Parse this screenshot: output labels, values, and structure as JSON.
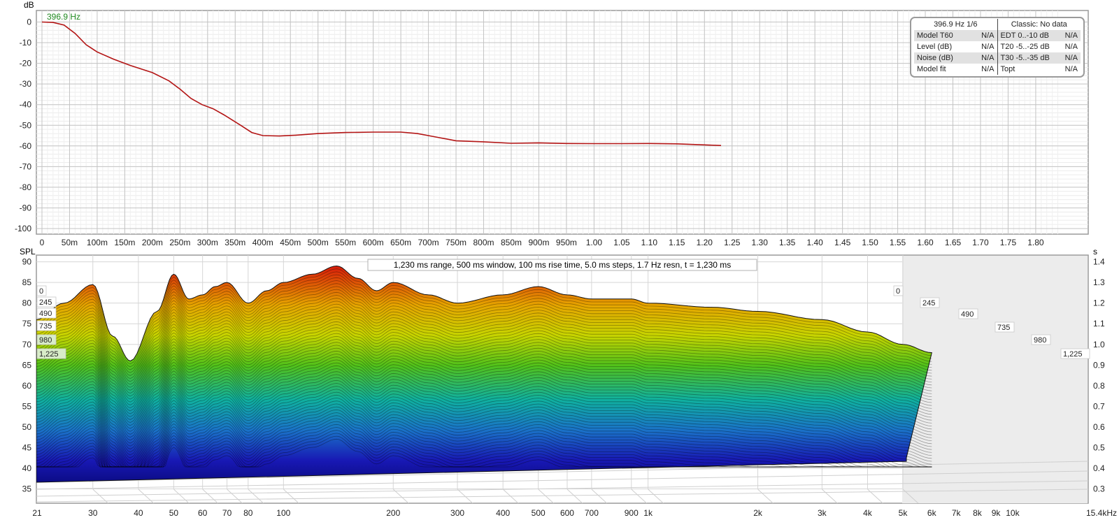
{
  "top_plot": {
    "y_unit": "dB",
    "cursor_freq": "396.9 Hz",
    "y_ticks": [
      "0",
      "-10",
      "-20",
      "-30",
      "-40",
      "-50",
      "-60",
      "-70",
      "-80",
      "-90",
      "-100"
    ],
    "x_ticks": [
      "0",
      "50m",
      "100m",
      "150m",
      "200m",
      "250m",
      "300m",
      "350m",
      "400m",
      "450m",
      "500m",
      "550m",
      "600m",
      "650m",
      "700m",
      "750m",
      "800m",
      "850m",
      "900m",
      "950m",
      "1.00",
      "1.05",
      "1.10",
      "1.15",
      "1.20",
      "1.25",
      "1.30",
      "1.35",
      "1.40",
      "1.45",
      "1.50",
      "1.55",
      "1.60",
      "1.65",
      "1.70",
      "1.75",
      "1.80"
    ]
  },
  "info_panel": {
    "header_left": "396.9 Hz 1/6",
    "header_right": "Classic: No data",
    "rows": [
      {
        "l_label": "Model T60",
        "l_value": "N/A",
        "r_label": "EDT  0..-10 dB",
        "r_value": "N/A"
      },
      {
        "l_label": "Level (dB)",
        "l_value": "N/A",
        "r_label": "T20 -5..-25 dB",
        "r_value": "N/A"
      },
      {
        "l_label": "Noise (dB)",
        "l_value": "N/A",
        "r_label": "T30 -5..-35 dB",
        "r_value": "N/A"
      },
      {
        "l_label": "Model fit",
        "l_value": "N/A",
        "r_label": "Topt",
        "r_value": "N/A"
      }
    ]
  },
  "waterfall": {
    "left_unit": "SPL",
    "right_unit": "s",
    "caption": "1,230 ms range, 500 ms window, 100 ms rise time, 5.0 ms steps,  1.7 Hz resn, t = 1,230 ms",
    "spl_ticks": [
      "90",
      "85",
      "80",
      "75",
      "70",
      "65",
      "60",
      "55",
      "50",
      "45",
      "40",
      "35"
    ],
    "time_ticks": [
      "1.4",
      "1.3",
      "1.2",
      "1.1",
      "1.0",
      "0.9",
      "0.8",
      "0.7",
      "0.6",
      "0.5",
      "0.4",
      "0.3"
    ],
    "freq_ticks": [
      "21",
      "30",
      "40",
      "50",
      "60",
      "70",
      "80",
      "100",
      "200",
      "300",
      "400",
      "500",
      "600",
      "700",
      "900",
      "1k",
      "2k",
      "3k",
      "4k",
      "5k",
      "6k",
      "7k",
      "8k",
      "9k",
      "10k",
      "15.4kHz"
    ],
    "depth_labels_left": [
      "0",
      "245",
      "490",
      "735",
      "980",
      "1,225"
    ],
    "depth_labels_right": [
      "0",
      "245",
      "490",
      "735",
      "980",
      "1,225"
    ]
  },
  "chart_data": [
    {
      "type": "line",
      "xlabel": "",
      "ylabel": "dB",
      "xlim": [
        0,
        1.85
      ],
      "ylim": [
        -100,
        0
      ],
      "grid": true,
      "series": [
        {
          "color": "#b31414",
          "x": [
            0,
            0.02,
            0.04,
            0.06,
            0.08,
            0.1,
            0.13,
            0.16,
            0.2,
            0.23,
            0.25,
            0.27,
            0.29,
            0.31,
            0.33,
            0.36,
            0.38,
            0.4,
            0.43,
            0.46,
            0.5,
            0.55,
            0.6,
            0.65,
            0.68,
            0.71,
            0.75,
            0.8,
            0.85,
            0.9,
            0.95,
            1.0,
            1.05,
            1.1,
            1.15,
            1.2,
            1.23
          ],
          "y": [
            0,
            -0.2,
            -1.5,
            -5.5,
            -11,
            -14.5,
            -18,
            -21,
            -24.5,
            -28.5,
            -32.5,
            -37,
            -40,
            -42,
            -45,
            -50,
            -53.5,
            -55,
            -55.2,
            -54.8,
            -54,
            -53.5,
            -53.3,
            -53.3,
            -54,
            -55.5,
            -57.5,
            -58,
            -58.7,
            -58.5,
            -58.8,
            -58.9,
            -58.9,
            -58.8,
            -59,
            -59.5,
            -59.8
          ]
        }
      ]
    },
    {
      "type": "area",
      "subtype": "waterfall",
      "xlabel": "",
      "ylabel": "SPL",
      "x_scale": "log",
      "xlim": [
        21,
        15400
      ],
      "ylim": [
        33,
        92
      ],
      "z_label": "s",
      "zlim": [
        0,
        1.23
      ],
      "x": [
        21,
        25,
        30,
        34,
        38,
        45,
        50,
        55,
        60,
        65,
        70,
        80,
        90,
        100,
        120,
        140,
        160,
        180,
        200,
        250,
        300,
        400,
        500,
        600,
        700,
        900,
        1000,
        1500,
        2000,
        3000,
        4000,
        5000,
        6000
      ],
      "series": [
        {
          "name": "0",
          "values": [
            76,
            80,
            84.5,
            72,
            66,
            78,
            87,
            81,
            82,
            84,
            85,
            80,
            83,
            85,
            87,
            89,
            86,
            83,
            85,
            82,
            80,
            82,
            84,
            82,
            81,
            81,
            80,
            79,
            78,
            76,
            73,
            70,
            68
          ]
        }
      ]
    }
  ]
}
